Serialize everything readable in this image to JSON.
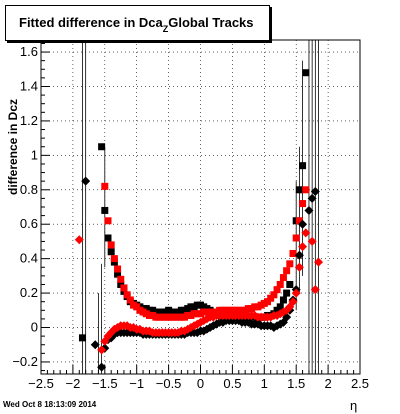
{
  "chart_data": {
    "type": "scatter",
    "title": "Fitted difference in Dca",
    "title_subscript": "Z",
    "title_suffix": "Global Tracks",
    "xlabel": "η",
    "ylabel": "difference in Dcz",
    "xlim": [
      -2.5,
      2.5
    ],
    "ylim": [
      -0.27,
      1.67
    ],
    "xticks": [
      -2.5,
      -2,
      -1.5,
      -1,
      -0.5,
      0,
      0.5,
      1,
      1.5,
      2,
      2.5
    ],
    "xtick_labels": [
      "−2.5",
      "−2",
      "−1.5",
      "−1",
      "−0.5",
      "0",
      "0.5",
      "1",
      "1.5",
      "2",
      "2.5"
    ],
    "yticks": [
      -0.2,
      0,
      0.2,
      0.4,
      0.6,
      0.8,
      1,
      1.2,
      1.4,
      1.6
    ],
    "ytick_labels": [
      "−0.2",
      "0",
      "0.2",
      "0.4",
      "0.6",
      "0.8",
      "1",
      "1.2",
      "1.4",
      "1.6"
    ],
    "grid": true,
    "series": [
      {
        "color": "#000000",
        "marker": "square",
        "points": [
          [
            -1.85,
            -0.06
          ],
          [
            -1.55,
            1.05
          ],
          [
            -1.5,
            0.68
          ],
          [
            -1.45,
            0.52
          ],
          [
            -1.4,
            0.44
          ],
          [
            -1.35,
            0.38
          ],
          [
            -1.3,
            0.31
          ],
          [
            -1.25,
            0.25
          ],
          [
            -1.2,
            0.21
          ],
          [
            -1.15,
            0.18
          ],
          [
            -1.1,
            0.15
          ],
          [
            -1.05,
            0.14
          ],
          [
            -1.0,
            0.13
          ],
          [
            -0.95,
            0.12
          ],
          [
            -0.9,
            0.11
          ],
          [
            -0.85,
            0.11
          ],
          [
            -0.8,
            0.1
          ],
          [
            -0.75,
            0.1
          ],
          [
            -0.7,
            0.09
          ],
          [
            -0.65,
            0.09
          ],
          [
            -0.6,
            0.09
          ],
          [
            -0.55,
            0.09
          ],
          [
            -0.5,
            0.1
          ],
          [
            -0.45,
            0.09
          ],
          [
            -0.4,
            0.09
          ],
          [
            -0.35,
            0.09
          ],
          [
            -0.3,
            0.1
          ],
          [
            -0.25,
            0.1
          ],
          [
            -0.2,
            0.11
          ],
          [
            -0.15,
            0.12
          ],
          [
            -0.1,
            0.12
          ],
          [
            -0.05,
            0.13
          ],
          [
            0.0,
            0.13
          ],
          [
            0.05,
            0.12
          ],
          [
            0.1,
            0.11
          ],
          [
            0.15,
            0.1
          ],
          [
            0.2,
            0.09
          ],
          [
            0.25,
            0.08
          ],
          [
            0.3,
            0.07
          ],
          [
            0.35,
            0.06
          ],
          [
            0.4,
            0.06
          ],
          [
            0.45,
            0.06
          ],
          [
            0.5,
            0.05
          ],
          [
            0.55,
            0.05
          ],
          [
            0.6,
            0.06
          ],
          [
            0.65,
            0.06
          ],
          [
            0.7,
            0.06
          ],
          [
            0.75,
            0.06
          ],
          [
            0.8,
            0.06
          ],
          [
            0.85,
            0.06
          ],
          [
            0.9,
            0.05
          ],
          [
            0.95,
            0.06
          ],
          [
            1.0,
            0.06
          ],
          [
            1.05,
            0.07
          ],
          [
            1.1,
            0.07
          ],
          [
            1.15,
            0.08
          ],
          [
            1.2,
            0.1
          ],
          [
            1.25,
            0.12
          ],
          [
            1.3,
            0.16
          ],
          [
            1.35,
            0.2
          ],
          [
            1.4,
            0.25
          ],
          [
            1.45,
            0.43
          ],
          [
            1.5,
            0.62
          ],
          [
            1.55,
            0.8
          ],
          [
            1.6,
            0.94
          ],
          [
            1.65,
            1.48
          ]
        ]
      },
      {
        "color": "#ff0000",
        "marker": "square",
        "points": [
          [
            -1.5,
            0.82
          ],
          [
            -1.45,
            0.62
          ],
          [
            -1.4,
            0.48
          ],
          [
            -1.35,
            0.4
          ],
          [
            -1.3,
            0.34
          ],
          [
            -1.25,
            0.28
          ],
          [
            -1.2,
            0.23
          ],
          [
            -1.15,
            0.19
          ],
          [
            -1.1,
            0.16
          ],
          [
            -1.05,
            0.13
          ],
          [
            -1.0,
            0.12
          ],
          [
            -0.95,
            0.1
          ],
          [
            -0.9,
            0.09
          ],
          [
            -0.85,
            0.08
          ],
          [
            -0.8,
            0.07
          ],
          [
            -0.75,
            0.07
          ],
          [
            -0.7,
            0.06
          ],
          [
            -0.65,
            0.06
          ],
          [
            -0.6,
            0.06
          ],
          [
            -0.55,
            0.06
          ],
          [
            -0.5,
            0.06
          ],
          [
            -0.45,
            0.06
          ],
          [
            -0.4,
            0.06
          ],
          [
            -0.35,
            0.06
          ],
          [
            -0.3,
            0.06
          ],
          [
            -0.25,
            0.06
          ],
          [
            -0.2,
            0.07
          ],
          [
            -0.15,
            0.07
          ],
          [
            -0.1,
            0.08
          ],
          [
            -0.05,
            0.08
          ],
          [
            0.0,
            0.08
          ],
          [
            0.05,
            0.09
          ],
          [
            0.1,
            0.09
          ],
          [
            0.15,
            0.09
          ],
          [
            0.2,
            0.09
          ],
          [
            0.25,
            0.09
          ],
          [
            0.3,
            0.1
          ],
          [
            0.35,
            0.1
          ],
          [
            0.4,
            0.1
          ],
          [
            0.45,
            0.1
          ],
          [
            0.5,
            0.1
          ],
          [
            0.55,
            0.1
          ],
          [
            0.6,
            0.1
          ],
          [
            0.65,
            0.1
          ],
          [
            0.7,
            0.1
          ],
          [
            0.75,
            0.11
          ],
          [
            0.8,
            0.11
          ],
          [
            0.85,
            0.12
          ],
          [
            0.9,
            0.12
          ],
          [
            0.95,
            0.13
          ],
          [
            1.0,
            0.14
          ],
          [
            1.05,
            0.15
          ],
          [
            1.1,
            0.17
          ],
          [
            1.15,
            0.19
          ],
          [
            1.2,
            0.22
          ],
          [
            1.25,
            0.25
          ],
          [
            1.3,
            0.29
          ],
          [
            1.35,
            0.33
          ],
          [
            1.4,
            0.37
          ],
          [
            1.45,
            0.43
          ],
          [
            1.5,
            0.52
          ],
          [
            1.55,
            0.62
          ],
          [
            1.6,
            0.72
          ],
          [
            1.65,
            0.8
          ]
        ]
      },
      {
        "color": "#000000",
        "marker": "diamond",
        "points": [
          [
            -1.8,
            0.85
          ],
          [
            -1.65,
            -0.1
          ],
          [
            -1.55,
            -0.23
          ],
          [
            -1.5,
            -0.12
          ],
          [
            -1.45,
            -0.07
          ],
          [
            -1.4,
            -0.06
          ],
          [
            -1.35,
            -0.04
          ],
          [
            -1.3,
            -0.03
          ],
          [
            -1.25,
            -0.03
          ],
          [
            -1.2,
            -0.03
          ],
          [
            -1.15,
            -0.03
          ],
          [
            -1.1,
            -0.03
          ],
          [
            -1.05,
            -0.03
          ],
          [
            -1.0,
            -0.03
          ],
          [
            -0.95,
            -0.03
          ],
          [
            -0.9,
            -0.04
          ],
          [
            -0.85,
            -0.04
          ],
          [
            -0.8,
            -0.04
          ],
          [
            -0.75,
            -0.04
          ],
          [
            -0.7,
            -0.04
          ],
          [
            -0.65,
            -0.04
          ],
          [
            -0.6,
            -0.04
          ],
          [
            -0.55,
            -0.04
          ],
          [
            -0.5,
            -0.04
          ],
          [
            -0.45,
            -0.04
          ],
          [
            -0.4,
            -0.04
          ],
          [
            -0.35,
            -0.04
          ],
          [
            -0.3,
            -0.04
          ],
          [
            -0.25,
            -0.04
          ],
          [
            -0.2,
            -0.03
          ],
          [
            -0.15,
            -0.03
          ],
          [
            -0.1,
            -0.03
          ],
          [
            -0.05,
            -0.03
          ],
          [
            0.0,
            -0.02
          ],
          [
            0.05,
            -0.02
          ],
          [
            0.1,
            -0.01
          ],
          [
            0.15,
            0.0
          ],
          [
            0.2,
            0.01
          ],
          [
            0.25,
            0.02
          ],
          [
            0.3,
            0.03
          ],
          [
            0.35,
            0.03
          ],
          [
            0.4,
            0.04
          ],
          [
            0.45,
            0.04
          ],
          [
            0.5,
            0.04
          ],
          [
            0.55,
            0.04
          ],
          [
            0.6,
            0.04
          ],
          [
            0.65,
            0.03
          ],
          [
            0.7,
            0.03
          ],
          [
            0.75,
            0.03
          ],
          [
            0.8,
            0.02
          ],
          [
            0.85,
            0.02
          ],
          [
            0.9,
            0.02
          ],
          [
            0.95,
            0.01
          ],
          [
            1.0,
            0.01
          ],
          [
            1.05,
            0.01
          ],
          [
            1.1,
            0.01
          ],
          [
            1.15,
            0.0
          ],
          [
            1.2,
            0.01
          ],
          [
            1.25,
            0.02
          ],
          [
            1.3,
            0.03
          ],
          [
            1.35,
            0.06
          ],
          [
            1.4,
            0.1
          ],
          [
            1.45,
            0.16
          ],
          [
            1.5,
            0.22
          ],
          [
            1.55,
            0.42
          ],
          [
            1.6,
            0.6
          ],
          [
            1.7,
            0.68
          ],
          [
            1.75,
            0.75
          ],
          [
            1.8,
            0.79
          ]
        ]
      },
      {
        "color": "#ff0000",
        "marker": "diamond",
        "points": [
          [
            -1.9,
            0.51
          ],
          [
            -1.55,
            -0.13
          ],
          [
            -1.5,
            -0.08
          ],
          [
            -1.45,
            -0.05
          ],
          [
            -1.4,
            -0.03
          ],
          [
            -1.35,
            -0.01
          ],
          [
            -1.3,
            0.0
          ],
          [
            -1.25,
            0.01
          ],
          [
            -1.2,
            0.01
          ],
          [
            -1.15,
            0.01
          ],
          [
            -1.1,
            0.0
          ],
          [
            -1.05,
            0.0
          ],
          [
            -1.0,
            -0.01
          ],
          [
            -0.95,
            -0.01
          ],
          [
            -0.9,
            -0.02
          ],
          [
            -0.85,
            -0.02
          ],
          [
            -0.8,
            -0.02
          ],
          [
            -0.75,
            -0.03
          ],
          [
            -0.7,
            -0.03
          ],
          [
            -0.65,
            -0.03
          ],
          [
            -0.6,
            -0.03
          ],
          [
            -0.55,
            -0.03
          ],
          [
            -0.5,
            -0.03
          ],
          [
            -0.45,
            -0.03
          ],
          [
            -0.4,
            -0.03
          ],
          [
            -0.35,
            -0.03
          ],
          [
            -0.3,
            -0.02
          ],
          [
            -0.25,
            -0.02
          ],
          [
            -0.2,
            -0.01
          ],
          [
            -0.15,
            0.0
          ],
          [
            -0.1,
            0.01
          ],
          [
            -0.05,
            0.02
          ],
          [
            0.0,
            0.03
          ],
          [
            0.05,
            0.04
          ],
          [
            0.1,
            0.05
          ],
          [
            0.15,
            0.06
          ],
          [
            0.2,
            0.06
          ],
          [
            0.25,
            0.07
          ],
          [
            0.3,
            0.07
          ],
          [
            0.35,
            0.07
          ],
          [
            0.4,
            0.07
          ],
          [
            0.45,
            0.07
          ],
          [
            0.5,
            0.07
          ],
          [
            0.55,
            0.07
          ],
          [
            0.6,
            0.07
          ],
          [
            0.65,
            0.07
          ],
          [
            0.7,
            0.07
          ],
          [
            0.75,
            0.07
          ],
          [
            0.8,
            0.07
          ],
          [
            0.85,
            0.07
          ],
          [
            0.9,
            0.06
          ],
          [
            0.95,
            0.06
          ],
          [
            1.0,
            0.06
          ],
          [
            1.05,
            0.06
          ],
          [
            1.1,
            0.06
          ],
          [
            1.15,
            0.07
          ],
          [
            1.2,
            0.07
          ],
          [
            1.25,
            0.08
          ],
          [
            1.3,
            0.09
          ],
          [
            1.35,
            0.1
          ],
          [
            1.4,
            0.12
          ],
          [
            1.45,
            0.15
          ],
          [
            1.5,
            0.2
          ],
          [
            1.55,
            0.35
          ],
          [
            1.6,
            0.47
          ],
          [
            1.65,
            0.55
          ],
          [
            1.75,
            0.5
          ],
          [
            1.8,
            0.22
          ],
          [
            1.85,
            0.38
          ]
        ]
      }
    ],
    "error_bars": [
      {
        "x": -1.85,
        "y_low": -0.27,
        "y_high": 1.67
      },
      {
        "x": -1.8,
        "y_low": -0.27,
        "y_high": 1.67
      },
      {
        "x": -1.6,
        "y_low": -0.27,
        "y_high": 0.2
      },
      {
        "x": -1.55,
        "y_low": -0.27,
        "y_high": 0.37
      },
      {
        "x": -1.5,
        "y_low": 0.35,
        "y_high": 1.05
      },
      {
        "x": 1.5,
        "y_low": 0.1,
        "y_high": 0.85
      },
      {
        "x": 1.55,
        "y_low": 0.2,
        "y_high": 1.05
      },
      {
        "x": 1.6,
        "y_low": 0.3,
        "y_high": 1.55
      },
      {
        "x": 1.7,
        "y_low": -0.27,
        "y_high": 1.67
      },
      {
        "x": 1.75,
        "y_low": -0.27,
        "y_high": 1.67
      },
      {
        "x": 1.8,
        "y_low": -0.27,
        "y_high": 1.67
      },
      {
        "x": 1.85,
        "y_low": -0.27,
        "y_high": 1.67
      }
    ]
  },
  "footer": "Wed Oct  8 18:13:09 2014"
}
